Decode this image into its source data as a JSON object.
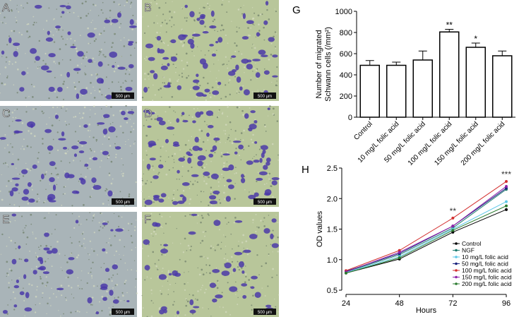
{
  "panels": [
    {
      "label": "A",
      "scale": "500 μm"
    },
    {
      "label": "B",
      "scale": "500 μm"
    },
    {
      "label": "C",
      "scale": "500 μm"
    },
    {
      "label": "D",
      "scale": "500 μm"
    },
    {
      "label": "E",
      "scale": "500 μm"
    },
    {
      "label": "F",
      "scale": "500 μm"
    }
  ],
  "chart_data": [
    {
      "type": "bar",
      "panel_label": "G",
      "y_label": [
        "Number of migrated",
        "Schwann cells (/mm²)"
      ],
      "categories": [
        "Control",
        "10 mg/L folic acid",
        "50 mg/L folic acid",
        "100 mg/L folic acid",
        "150 mg/L folic acid",
        "200 mg/L folic acid"
      ],
      "values": [
        490,
        490,
        540,
        805,
        660,
        580
      ],
      "errors": [
        45,
        30,
        85,
        25,
        40,
        45
      ],
      "significance": [
        null,
        null,
        null,
        "**",
        "*",
        null
      ],
      "color": "#ffffff",
      "ylim": [
        0,
        1000
      ],
      "yticks": [
        0,
        200,
        400,
        600,
        800,
        1000
      ]
    },
    {
      "type": "line",
      "panel_label": "H",
      "x_label": "Hours",
      "y_label": "OD values",
      "x": [
        24,
        48,
        72,
        96
      ],
      "xlim": [
        24,
        96
      ],
      "xticks": [
        24,
        48,
        72,
        96
      ],
      "ylim": [
        0.5,
        2.5
      ],
      "yticks": [
        0.5,
        {
          "value": 1,
          "label": "1.0"
        },
        1.5,
        {
          "value": 2,
          "label": "2.0"
        },
        2.5
      ],
      "series": [
        {
          "name": "Control",
          "color": "#000000",
          "values": [
            0.78,
            1.01,
            1.45,
            1.82
          ]
        },
        {
          "name": "NGF",
          "color": "#1f7a6e",
          "values": [
            0.8,
            1.08,
            1.52,
            2.15
          ]
        },
        {
          "name": "10 mg/L folic acid",
          "color": "#5fc8e8",
          "values": [
            0.79,
            1.05,
            1.5,
            1.95
          ]
        },
        {
          "name": "50 mg/L folic acid",
          "color": "#1a237e",
          "values": [
            0.81,
            1.1,
            1.55,
            2.17
          ]
        },
        {
          "name": "100 mg/L folic acid",
          "color": "#d32f2f",
          "values": [
            0.82,
            1.15,
            1.68,
            2.28
          ]
        },
        {
          "name": "150 mg/L folic acid",
          "color": "#8e24aa",
          "values": [
            0.8,
            1.12,
            1.55,
            2.2
          ]
        },
        {
          "name": "200 mg/L folic acid",
          "color": "#2e7d32",
          "values": [
            0.78,
            1.03,
            1.48,
            1.88
          ]
        }
      ],
      "annotations": [
        {
          "x": 72,
          "text": "**"
        },
        {
          "x": 96,
          "text": "***"
        }
      ]
    }
  ]
}
